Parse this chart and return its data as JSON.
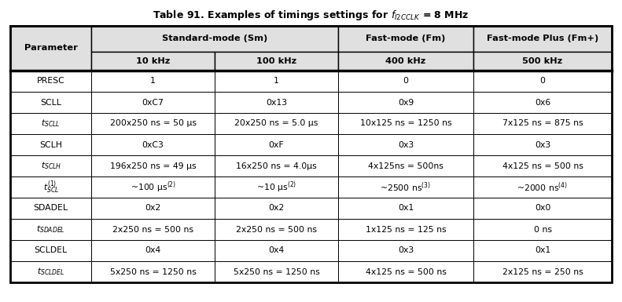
{
  "title": "Table 91. Examples of timings settings for $f_{I2CCLK}$ = 8 MHz",
  "col_header1": [
    "Parameter",
    "Standard-mode (Sm)",
    "Fast-mode (Fm)",
    "Fast-mode Plus (Fm+)"
  ],
  "col_header2": [
    "10 kHz",
    "100 kHz",
    "400 kHz",
    "500 kHz"
  ],
  "rows": [
    [
      "PRESC",
      "1",
      "1",
      "0",
      "0"
    ],
    [
      "SCLL",
      "0xC7",
      "0x13",
      "0x9",
      "0x6"
    ],
    [
      "$t_{SCLL}$",
      "200x250 ns = 50 μs",
      "20x250 ns = 5.0 μs",
      "10x125 ns = 1250 ns",
      "7x125 ns = 875 ns"
    ],
    [
      "SCLH",
      "0xC3",
      "0xF",
      "0x3",
      "0x3"
    ],
    [
      "$t_{SCLH}$",
      "196x250 ns = 49 μs",
      "16x250 ns = 4.0μs",
      "4x125ns = 500ns",
      "4x125 ns = 500 ns"
    ],
    [
      "$t_{SCL}^{(1)}$",
      "~100 μs$^{(2)}$",
      "~10 μs$^{(2)}$",
      "~2500 ns$^{(3)}$",
      "~2000 ns$^{(4)}$"
    ],
    [
      "SDADEL",
      "0x2",
      "0x2",
      "0x1",
      "0x0"
    ],
    [
      "$t_{SDADEL}$",
      "2x250 ns = 500 ns",
      "2x250 ns = 500 ns",
      "1x125 ns = 125 ns",
      "0 ns"
    ],
    [
      "SCLDEL",
      "0x4",
      "0x4",
      "0x3",
      "0x1"
    ],
    [
      "$t_{SCLDEL}$",
      "5x250 ns = 1250 ns",
      "5x250 ns = 1250 ns",
      "4x125 ns = 500 ns",
      "2x125 ns = 250 ns"
    ]
  ],
  "bg_header": "#e0e0e0",
  "bg_white": "#ffffff",
  "border_color": "#000000",
  "text_color": "#000000",
  "font_size": 7.8,
  "header_font_size": 8.2,
  "title_font_size": 9.0,
  "fig_width": 7.91,
  "fig_height": 3.85,
  "dpi": 100
}
